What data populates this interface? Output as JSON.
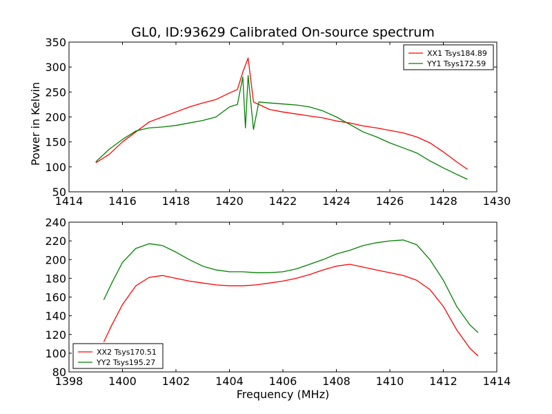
{
  "figure": {
    "title": "GL0, ID:93629 Calibrated On-source spectrum",
    "xlabel": "Frequency (MHz)"
  },
  "colors": {
    "xx": "#ff0000",
    "yy": "#008000"
  },
  "chart_data": [
    {
      "type": "line",
      "title": "GL0, ID:93629 Calibrated On-source spectrum",
      "xlabel": "",
      "ylabel": "Power in Kelvin",
      "xlim": [
        1414,
        1430
      ],
      "ylim": [
        50,
        350
      ],
      "xticks": [
        1414,
        1416,
        1418,
        1420,
        1422,
        1424,
        1426,
        1428,
        1430
      ],
      "yticks": [
        50,
        100,
        150,
        200,
        250,
        300,
        350
      ],
      "grid": false,
      "legend_position": "top-right",
      "series": [
        {
          "name": "XX1 Tsys184.89",
          "color": "#ff0000",
          "x": [
            1415.0,
            1415.5,
            1416.0,
            1416.5,
            1417.0,
            1417.5,
            1418.0,
            1418.5,
            1419.0,
            1419.5,
            1420.0,
            1420.3,
            1420.5,
            1420.7,
            1420.9,
            1421.1,
            1421.5,
            1422.0,
            1422.5,
            1423.0,
            1423.5,
            1424.0,
            1424.5,
            1425.0,
            1425.5,
            1426.0,
            1426.5,
            1427.0,
            1427.5,
            1428.0,
            1428.5,
            1428.9
          ],
          "y": [
            108,
            125,
            150,
            170,
            190,
            200,
            210,
            220,
            228,
            235,
            248,
            255,
            290,
            318,
            230,
            225,
            215,
            210,
            206,
            202,
            198,
            192,
            188,
            182,
            178,
            173,
            168,
            160,
            148,
            130,
            110,
            95
          ]
        },
        {
          "name": "YY1 Tsys172.59",
          "color": "#008000",
          "x": [
            1415.0,
            1415.5,
            1416.0,
            1416.5,
            1417.0,
            1417.5,
            1418.0,
            1418.5,
            1419.0,
            1419.5,
            1420.0,
            1420.3,
            1420.5,
            1420.6,
            1420.7,
            1420.9,
            1421.1,
            1421.5,
            1422.0,
            1422.5,
            1423.0,
            1423.5,
            1424.0,
            1424.5,
            1425.0,
            1425.5,
            1426.0,
            1426.5,
            1427.0,
            1427.5,
            1428.0,
            1428.5,
            1428.9
          ],
          "y": [
            110,
            135,
            155,
            172,
            178,
            180,
            183,
            188,
            193,
            200,
            220,
            225,
            280,
            178,
            283,
            175,
            230,
            228,
            226,
            224,
            220,
            212,
            200,
            185,
            170,
            160,
            148,
            138,
            128,
            112,
            98,
            85,
            75
          ]
        }
      ]
    },
    {
      "type": "line",
      "title": "",
      "xlabel": "Frequency (MHz)",
      "ylabel": "",
      "xlim": [
        1398,
        1414
      ],
      "ylim": [
        80,
        240
      ],
      "xticks": [
        1398,
        1400,
        1402,
        1404,
        1406,
        1408,
        1410,
        1412,
        1414
      ],
      "yticks": [
        80,
        100,
        120,
        140,
        160,
        180,
        200,
        220,
        240
      ],
      "grid": false,
      "legend_position": "bottom-left",
      "series": [
        {
          "name": "XX2 Tsys170.51",
          "color": "#ff0000",
          "x": [
            1399.3,
            1399.6,
            1400.0,
            1400.5,
            1401.0,
            1401.5,
            1402.0,
            1402.5,
            1403.0,
            1403.5,
            1404.0,
            1404.5,
            1405.0,
            1405.5,
            1406.0,
            1406.5,
            1407.0,
            1407.5,
            1408.0,
            1408.5,
            1409.0,
            1409.5,
            1410.0,
            1410.5,
            1411.0,
            1411.5,
            1412.0,
            1412.5,
            1413.0,
            1413.3
          ],
          "y": [
            112,
            130,
            152,
            172,
            181,
            183,
            180,
            177,
            175,
            173,
            172,
            172,
            173,
            175,
            177,
            180,
            184,
            189,
            193,
            195,
            192,
            189,
            186,
            183,
            178,
            168,
            150,
            125,
            105,
            97
          ]
        },
        {
          "name": "YY2 Tsys195.27",
          "color": "#008000",
          "x": [
            1399.3,
            1399.6,
            1400.0,
            1400.5,
            1401.0,
            1401.5,
            1402.0,
            1402.5,
            1403.0,
            1403.5,
            1404.0,
            1404.5,
            1405.0,
            1405.5,
            1406.0,
            1406.5,
            1407.0,
            1407.5,
            1408.0,
            1408.5,
            1409.0,
            1409.5,
            1410.0,
            1410.5,
            1411.0,
            1411.5,
            1412.0,
            1412.5,
            1413.0,
            1413.3
          ],
          "y": [
            157,
            175,
            197,
            212,
            217,
            215,
            208,
            200,
            193,
            189,
            187,
            187,
            186,
            186,
            187,
            190,
            195,
            200,
            206,
            210,
            215,
            218,
            220,
            221,
            216,
            200,
            178,
            150,
            130,
            122
          ]
        }
      ]
    }
  ]
}
